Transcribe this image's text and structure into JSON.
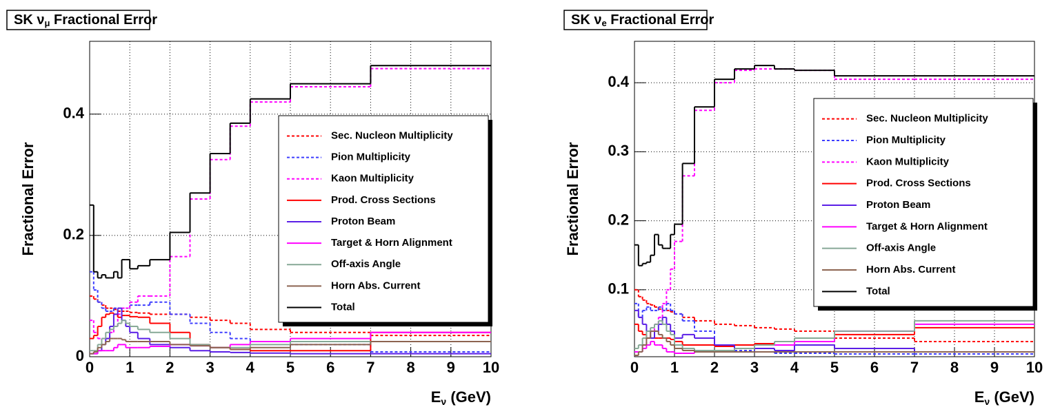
{
  "chart_data": [
    {
      "type": "histogram",
      "title_parts": [
        "SK ν",
        "μ",
        " Fractional Error"
      ],
      "ylabel": "Fractional Error",
      "xlabel_parts": [
        "E",
        "ν",
        " (GeV)"
      ],
      "bins": [
        0,
        0.1,
        0.2,
        0.3,
        0.4,
        0.5,
        0.6,
        0.7,
        0.8,
        0.9,
        1.0,
        1.2,
        1.5,
        2.0,
        2.5,
        3.0,
        3.5,
        4.0,
        5.0,
        7.0,
        10.0
      ],
      "xlim": [
        0,
        10
      ],
      "xticks": [
        0,
        1,
        2,
        3,
        4,
        5,
        6,
        7,
        8,
        9,
        10
      ],
      "ylim": [
        0,
        0.52
      ],
      "yticks": [
        0,
        0.2,
        0.4
      ],
      "grid": true,
      "legend": "right",
      "series": [
        {
          "name": "Sec. Nucleon Multiplicity",
          "color": "#ff0000",
          "style": "dashed",
          "values": [
            0.1,
            0.095,
            0.09,
            0.085,
            0.08,
            0.08,
            0.078,
            0.075,
            0.075,
            0.075,
            0.073,
            0.072,
            0.07,
            0.07,
            0.065,
            0.06,
            0.055,
            0.045,
            0.04,
            0.035
          ]
        },
        {
          "name": "Pion Multiplicity",
          "color": "#3c3cff",
          "style": "dashed",
          "values": [
            0.14,
            0.11,
            0.09,
            0.08,
            0.075,
            0.075,
            0.08,
            0.08,
            0.08,
            0.08,
            0.085,
            0.085,
            0.09,
            0.07,
            0.055,
            0.04,
            0.03,
            0.025,
            0.02,
            0.008
          ]
        },
        {
          "name": "Kaon Multiplicity",
          "color": "#ff00ff",
          "style": "dashed",
          "values": [
            0.06,
            0.04,
            0.03,
            0.03,
            0.03,
            0.04,
            0.05,
            0.07,
            0.08,
            0.08,
            0.09,
            0.1,
            0.1,
            0.165,
            0.26,
            0.325,
            0.38,
            0.42,
            0.445,
            0.475
          ]
        },
        {
          "name": "Prod. Cross Sections",
          "color": "#ff0000",
          "style": "solid",
          "values": [
            0.03,
            0.035,
            0.05,
            0.065,
            0.07,
            0.072,
            0.07,
            0.065,
            0.068,
            0.068,
            0.066,
            0.065,
            0.055,
            0.04,
            0.02,
            0.015,
            0.012,
            0.01,
            0.01,
            0.04
          ]
        },
        {
          "name": "Proton Beam",
          "color": "#5a1ee6",
          "style": "solid",
          "values": [
            0.005,
            0.005,
            0.01,
            0.02,
            0.03,
            0.05,
            0.07,
            0.08,
            0.06,
            0.05,
            0.04,
            0.03,
            0.02,
            0.015,
            0.01,
            0.008,
            0.007,
            0.006,
            0.005,
            0.005
          ]
        },
        {
          "name": "Target & Horn Alignment",
          "color": "#ff00ff",
          "style": "solid",
          "values": [
            0.005,
            0.005,
            0.01,
            0.01,
            0.01,
            0.01,
            0.015,
            0.02,
            0.02,
            0.015,
            0.015,
            0.015,
            0.017,
            0.02,
            0.018,
            0.015,
            0.02,
            0.025,
            0.03,
            0.04
          ]
        },
        {
          "name": "Off-axis Angle",
          "color": "#86a896",
          "style": "solid",
          "values": [
            0.01,
            0.01,
            0.02,
            0.03,
            0.04,
            0.045,
            0.05,
            0.055,
            0.06,
            0.055,
            0.05,
            0.045,
            0.04,
            0.03,
            0.02,
            0.015,
            0.015,
            0.02,
            0.025,
            0.025
          ]
        },
        {
          "name": "Horn Abs. Current",
          "color": "#8c6450",
          "style": "solid",
          "values": [
            0.005,
            0.008,
            0.015,
            0.02,
            0.025,
            0.03,
            0.03,
            0.03,
            0.028,
            0.025,
            0.025,
            0.025,
            0.025,
            0.02,
            0.018,
            0.015,
            0.012,
            0.015,
            0.02,
            0.025
          ]
        },
        {
          "name": "Total",
          "color": "#000000",
          "style": "solid",
          "values": [
            0.25,
            0.14,
            0.13,
            0.135,
            0.13,
            0.13,
            0.14,
            0.13,
            0.16,
            0.16,
            0.145,
            0.15,
            0.16,
            0.205,
            0.27,
            0.335,
            0.385,
            0.425,
            0.45,
            0.48
          ]
        }
      ]
    },
    {
      "type": "histogram",
      "title_parts": [
        "SK ν",
        "e",
        " Fractional Error"
      ],
      "ylabel": "Fractional Error",
      "xlabel_parts": [
        "E",
        "ν",
        " (GeV)"
      ],
      "bins": [
        0,
        0.1,
        0.2,
        0.3,
        0.4,
        0.5,
        0.6,
        0.7,
        0.8,
        0.9,
        1.0,
        1.2,
        1.5,
        2.0,
        2.5,
        3.0,
        3.5,
        4.0,
        5.0,
        7.0,
        10.0
      ],
      "xlim": [
        0,
        10
      ],
      "xticks": [
        0,
        1,
        2,
        3,
        4,
        5,
        6,
        7,
        8,
        9,
        10
      ],
      "ylim": [
        0.003,
        0.46
      ],
      "yticks": [
        0.1,
        0.2,
        0.3,
        0.4
      ],
      "grid": true,
      "legend": "right",
      "series": [
        {
          "name": "Sec. Nucleon Multiplicity",
          "color": "#ff0000",
          "style": "dashed",
          "values": [
            0.1,
            0.09,
            0.085,
            0.08,
            0.078,
            0.075,
            0.072,
            0.07,
            0.07,
            0.068,
            0.065,
            0.06,
            0.055,
            0.05,
            0.048,
            0.045,
            0.043,
            0.04,
            0.03,
            0.025
          ]
        },
        {
          "name": "Pion Multiplicity",
          "color": "#3c3cff",
          "style": "dashed",
          "values": [
            0.08,
            0.06,
            0.07,
            0.075,
            0.07,
            0.07,
            0.075,
            0.07,
            0.08,
            0.07,
            0.065,
            0.055,
            0.04,
            0.02,
            0.012,
            0.01,
            0.008,
            0.008,
            0.007,
            0.007
          ]
        },
        {
          "name": "Kaon Multiplicity",
          "color": "#ff00ff",
          "style": "dashed",
          "values": [
            0.01,
            0.01,
            0.02,
            0.03,
            0.04,
            0.05,
            0.06,
            0.08,
            0.1,
            0.13,
            0.17,
            0.265,
            0.36,
            0.4,
            0.418,
            0.42,
            0.42,
            0.418,
            0.405,
            0.405
          ]
        },
        {
          "name": "Prod. Cross Sections",
          "color": "#ff0000",
          "style": "solid",
          "values": [
            0.05,
            0.04,
            0.035,
            0.03,
            0.03,
            0.03,
            0.03,
            0.03,
            0.03,
            0.028,
            0.025,
            0.02,
            0.02,
            0.018,
            0.02,
            0.022,
            0.02,
            0.03,
            0.035,
            0.045
          ]
        },
        {
          "name": "Proton Beam",
          "color": "#5a1ee6",
          "style": "solid",
          "values": [
            0.07,
            0.06,
            0.05,
            0.04,
            0.03,
            0.04,
            0.05,
            0.06,
            0.05,
            0.04,
            0.03,
            0.035,
            0.03,
            0.02,
            0.015,
            0.015,
            0.012,
            0.02,
            0.015,
            0.01
          ]
        },
        {
          "name": "Target & Horn Alignment",
          "color": "#ff00ff",
          "style": "solid",
          "values": [
            0.01,
            0.01,
            0.015,
            0.02,
            0.025,
            0.02,
            0.02,
            0.015,
            0.01,
            0.01,
            0.008,
            0.008,
            0.01,
            0.012,
            0.015,
            0.02,
            0.02,
            0.025,
            0.04,
            0.05
          ]
        },
        {
          "name": "Off-axis Angle",
          "color": "#86a896",
          "style": "solid",
          "values": [
            0.015,
            0.02,
            0.03,
            0.04,
            0.045,
            0.05,
            0.055,
            0.05,
            0.04,
            0.035,
            0.02,
            0.015,
            0.012,
            0.012,
            0.015,
            0.02,
            0.025,
            0.03,
            0.04,
            0.055
          ]
        },
        {
          "name": "Horn Abs. Current",
          "color": "#8c6450",
          "style": "solid",
          "values": [
            0.005,
            0.01,
            0.02,
            0.03,
            0.04,
            0.04,
            0.035,
            0.03,
            0.025,
            0.02,
            0.015,
            0.012,
            0.01,
            0.01,
            0.01,
            0.01,
            0.01,
            0.01,
            0.01,
            0.01
          ]
        },
        {
          "name": "Total",
          "color": "#000000",
          "style": "solid",
          "values": [
            0.165,
            0.135,
            0.138,
            0.14,
            0.15,
            0.18,
            0.165,
            0.16,
            0.16,
            0.18,
            0.195,
            0.283,
            0.365,
            0.405,
            0.42,
            0.425,
            0.42,
            0.418,
            0.41,
            0.41
          ]
        }
      ]
    }
  ]
}
